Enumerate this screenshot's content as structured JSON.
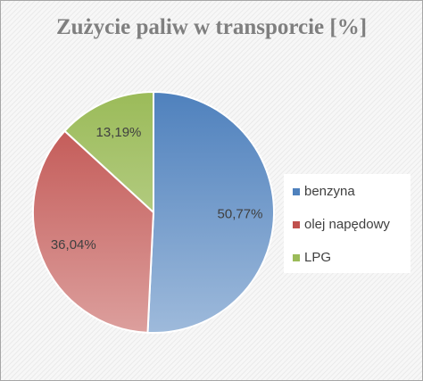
{
  "chart_data": {
    "type": "pie",
    "title": "Zużycie paliw w transporcie [%]",
    "categories": [
      "benzyna",
      "olej napędowy",
      "LPG"
    ],
    "values": [
      50.77,
      36.04,
      13.19
    ],
    "value_labels": [
      "50,77%",
      "36,04%",
      "13,19%"
    ],
    "colors": [
      "#4f81bd",
      "#c0504d",
      "#9bbb59"
    ],
    "legend": "right"
  }
}
